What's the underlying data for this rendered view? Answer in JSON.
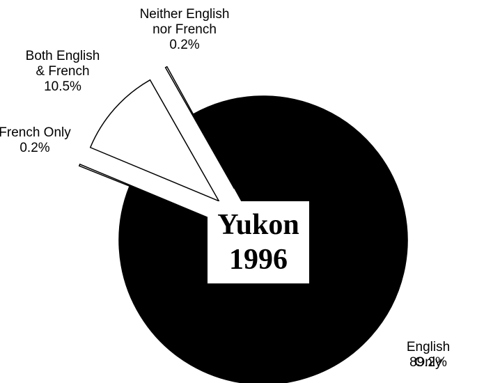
{
  "chart_data": {
    "type": "pie",
    "title": "Yukon\n1996",
    "categories": [
      "English Only",
      "French Only",
      "Both English\n& French",
      "Neither English\nnor French"
    ],
    "values": [
      89.2,
      0.2,
      10.5,
      0.2
    ],
    "value_labels": [
      "89.2%",
      "0.2%",
      "10.5%",
      "0.2%"
    ],
    "colors": [
      "#000000",
      "#ffffff",
      "#ffffff",
      "#ffffff"
    ]
  }
}
